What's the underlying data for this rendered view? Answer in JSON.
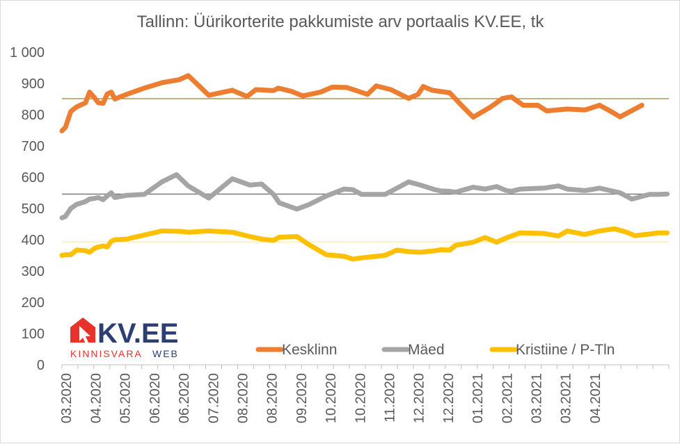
{
  "chart_data": {
    "type": "line",
    "title": "Tallinn: Üürikorterite pakkumiste arv portaalis KV.EE, tk",
    "ylim": [
      0,
      1000
    ],
    "yticks": [
      0,
      100,
      200,
      300,
      400,
      500,
      600,
      700,
      800,
      900,
      1000
    ],
    "ytick_labels": [
      "0",
      "100",
      "200",
      "300",
      "400",
      "500",
      "600",
      "700",
      "800",
      "900",
      "1 000"
    ],
    "xlim": [
      0,
      100
    ],
    "xticks": [
      {
        "pos": 0.5,
        "label": "03.2020"
      },
      {
        "pos": 5.5,
        "label": "04.2020"
      },
      {
        "pos": 10.5,
        "label": "05.2020"
      },
      {
        "pos": 15.5,
        "label": "06.2020"
      },
      {
        "pos": 20.5,
        "label": "06.2020"
      },
      {
        "pos": 25.5,
        "label": "07.2020"
      },
      {
        "pos": 30.5,
        "label": "08.2020"
      },
      {
        "pos": 35.5,
        "label": "08.2020"
      },
      {
        "pos": 40.5,
        "label": "09.2020"
      },
      {
        "pos": 45.5,
        "label": "10.2020"
      },
      {
        "pos": 50.5,
        "label": "10.2020"
      },
      {
        "pos": 55.5,
        "label": "11.2020"
      },
      {
        "pos": 60.5,
        "label": "12.2020"
      },
      {
        "pos": 65.5,
        "label": "12.2020"
      },
      {
        "pos": 70.5,
        "label": "01.2021"
      },
      {
        "pos": 75.5,
        "label": "02.2021"
      },
      {
        "pos": 80.5,
        "label": "03.2021"
      },
      {
        "pos": 85.5,
        "label": "03.2021"
      },
      {
        "pos": 90.5,
        "label": "04.2021"
      }
    ],
    "grid": false,
    "legend_position": "bottom-center",
    "series": [
      {
        "name": "Kesklinn",
        "color": "#ed7d31",
        "average": 851,
        "avg_color": "#7f6000",
        "points": [
          [
            0,
            748
          ],
          [
            0.6,
            760
          ],
          [
            1.5,
            810
          ],
          [
            2.5,
            825
          ],
          [
            4,
            838
          ],
          [
            4.7,
            872
          ],
          [
            5.5,
            855
          ],
          [
            6.2,
            838
          ],
          [
            7,
            836
          ],
          [
            7.7,
            866
          ],
          [
            8.4,
            872
          ],
          [
            9,
            850
          ],
          [
            11,
            865
          ],
          [
            14,
            885
          ],
          [
            17,
            902
          ],
          [
            20,
            912
          ],
          [
            21.5,
            925
          ],
          [
            25,
            862
          ],
          [
            29,
            878
          ],
          [
            31.5,
            858
          ],
          [
            33,
            880
          ],
          [
            36,
            877
          ],
          [
            36.8,
            885
          ],
          [
            39,
            875
          ],
          [
            41,
            860
          ],
          [
            44,
            872
          ],
          [
            46,
            888
          ],
          [
            48.5,
            887
          ],
          [
            52,
            865
          ],
          [
            53.5,
            892
          ],
          [
            56,
            880
          ],
          [
            59,
            852
          ],
          [
            60.6,
            865
          ],
          [
            61.5,
            890
          ],
          [
            63,
            878
          ],
          [
            66,
            870
          ],
          [
            68,
            830
          ],
          [
            70,
            792
          ],
          [
            73,
            825
          ],
          [
            75,
            852
          ],
          [
            76.5,
            857
          ],
          [
            78.5,
            830
          ],
          [
            81,
            830
          ],
          [
            82.5,
            812
          ],
          [
            86,
            818
          ],
          [
            89,
            815
          ],
          [
            91.5,
            830
          ],
          [
            93,
            815
          ],
          [
            95,
            793
          ],
          [
            98.7,
            830
          ]
        ]
      },
      {
        "name": "Mäed",
        "color": "#a5a5a5",
        "average": 546,
        "avg_color": "#404040",
        "points": [
          [
            0,
            470
          ],
          [
            0.6,
            475
          ],
          [
            1.5,
            500
          ],
          [
            2.5,
            513
          ],
          [
            4,
            522
          ],
          [
            4.7,
            530
          ],
          [
            5.5,
            532
          ],
          [
            6.2,
            535
          ],
          [
            7,
            528
          ],
          [
            7.7,
            540
          ],
          [
            8.4,
            550
          ],
          [
            9,
            535
          ],
          [
            11,
            542
          ],
          [
            14,
            545
          ],
          [
            17,
            585
          ],
          [
            19.5,
            608
          ],
          [
            21.5,
            572
          ],
          [
            25,
            533
          ],
          [
            29,
            595
          ],
          [
            32,
            575
          ],
          [
            34,
            578
          ],
          [
            36,
            545
          ],
          [
            37,
            518
          ],
          [
            40,
            498
          ],
          [
            42,
            512
          ],
          [
            45,
            540
          ],
          [
            48,
            562
          ],
          [
            49.5,
            560
          ],
          [
            51,
            545
          ],
          [
            55,
            545
          ],
          [
            57,
            565
          ],
          [
            59,
            585
          ],
          [
            61,
            575
          ],
          [
            63.5,
            560
          ],
          [
            64.5,
            556
          ],
          [
            66,
            555
          ],
          [
            67,
            552
          ],
          [
            70,
            568
          ],
          [
            72,
            562
          ],
          [
            74,
            570
          ],
          [
            75.5,
            558
          ],
          [
            76.5,
            555
          ],
          [
            78,
            562
          ],
          [
            82,
            565
          ],
          [
            84.5,
            572
          ],
          [
            86,
            562
          ],
          [
            89,
            557
          ],
          [
            91.5,
            565
          ],
          [
            95,
            550
          ],
          [
            97,
            530
          ],
          [
            100,
            545
          ],
          [
            101.5,
            545
          ],
          [
            103,
            546
          ]
        ]
      },
      {
        "name": "Kristiine / P-Tln",
        "color": "#ffc000",
        "average": 393,
        "avg_color": "#ffe699",
        "points": [
          [
            0,
            350
          ],
          [
            0.6,
            352
          ],
          [
            1.5,
            352
          ],
          [
            2.5,
            367
          ],
          [
            4,
            365
          ],
          [
            4.7,
            360
          ],
          [
            5.5,
            372
          ],
          [
            6.2,
            377
          ],
          [
            7,
            380
          ],
          [
            7.7,
            377
          ],
          [
            8.4,
            395
          ],
          [
            9,
            400
          ],
          [
            11,
            402
          ],
          [
            14,
            415
          ],
          [
            17,
            428
          ],
          [
            20,
            427
          ],
          [
            21.5,
            424
          ],
          [
            25,
            428
          ],
          [
            29,
            424
          ],
          [
            32,
            410
          ],
          [
            34,
            402
          ],
          [
            36,
            398
          ],
          [
            37,
            408
          ],
          [
            40,
            410
          ],
          [
            42,
            385
          ],
          [
            45,
            352
          ],
          [
            48,
            347
          ],
          [
            49.5,
            338
          ],
          [
            51,
            342
          ],
          [
            55,
            350
          ],
          [
            57,
            367
          ],
          [
            59,
            362
          ],
          [
            61,
            360
          ],
          [
            63.5,
            365
          ],
          [
            64.5,
            368
          ],
          [
            66,
            367
          ],
          [
            67,
            382
          ],
          [
            70,
            392
          ],
          [
            72,
            407
          ],
          [
            74,
            392
          ],
          [
            75.5,
            405
          ],
          [
            78,
            422
          ],
          [
            82,
            420
          ],
          [
            84.5,
            412
          ],
          [
            86,
            428
          ],
          [
            89,
            417
          ],
          [
            91.5,
            428
          ],
          [
            94,
            435
          ],
          [
            96,
            425
          ],
          [
            97.5,
            413
          ],
          [
            100,
            418
          ],
          [
            101.5,
            422
          ],
          [
            103,
            422
          ]
        ]
      }
    ]
  }
}
